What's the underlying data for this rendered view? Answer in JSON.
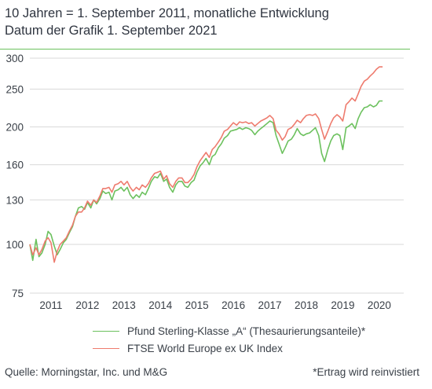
{
  "title": {
    "line1": "10 Jahren = 1. September 2011, monatliche Entwicklung",
    "line2": "Datum der Grafik 1. September 2021"
  },
  "footer": {
    "source": "Quelle: Morningstar, Inc. und M&G",
    "note": "*Ertrag wird reinvistiert"
  },
  "colors": {
    "fund": "#6cc15e",
    "index": "#ee7b6e",
    "grid": "#d9d9d9",
    "rule": "#6cc15e"
  },
  "chart_data": {
    "type": "line",
    "y_scale": "log",
    "ylim": [
      75,
      300
    ],
    "yticks": [
      75,
      100,
      130,
      160,
      200,
      250,
      300
    ],
    "xlim": [
      2010.75,
      2021.0
    ],
    "xticks": [
      "2011",
      "2012",
      "2013",
      "2014",
      "2015",
      "2016",
      "2017",
      "2018",
      "2019",
      "2020"
    ],
    "grid": true,
    "legend_position": "bottom",
    "series": [
      {
        "name": "Pfund Sterling-Klasse „A“ (Thesaurierungsanteile)*",
        "color": "#6cc15e",
        "points": [
          [
            2010.75,
            100
          ],
          [
            2010.83,
            91
          ],
          [
            2010.92,
            103
          ],
          [
            2011.0,
            93
          ],
          [
            2011.08,
            95
          ],
          [
            2011.17,
            100
          ],
          [
            2011.25,
            108
          ],
          [
            2011.33,
            106
          ],
          [
            2011.42,
            99
          ],
          [
            2011.5,
            94
          ],
          [
            2011.58,
            97
          ],
          [
            2011.67,
            101
          ],
          [
            2011.75,
            103
          ],
          [
            2011.83,
            107
          ],
          [
            2011.92,
            111
          ],
          [
            2012.0,
            118
          ],
          [
            2012.08,
            124
          ],
          [
            2012.17,
            125
          ],
          [
            2012.25,
            123
          ],
          [
            2012.33,
            128
          ],
          [
            2012.42,
            124
          ],
          [
            2012.5,
            130
          ],
          [
            2012.58,
            127
          ],
          [
            2012.67,
            131
          ],
          [
            2012.75,
            137
          ],
          [
            2012.83,
            135
          ],
          [
            2012.92,
            136
          ],
          [
            2013.0,
            130
          ],
          [
            2013.08,
            137
          ],
          [
            2013.17,
            138
          ],
          [
            2013.25,
            140
          ],
          [
            2013.33,
            137
          ],
          [
            2013.42,
            140
          ],
          [
            2013.5,
            134
          ],
          [
            2013.58,
            131
          ],
          [
            2013.67,
            134
          ],
          [
            2013.75,
            132
          ],
          [
            2013.83,
            136
          ],
          [
            2013.92,
            134
          ],
          [
            2014.0,
            139
          ],
          [
            2014.08,
            145
          ],
          [
            2014.17,
            149
          ],
          [
            2014.25,
            148
          ],
          [
            2014.33,
            152
          ],
          [
            2014.42,
            145
          ],
          [
            2014.5,
            147
          ],
          [
            2014.58,
            140
          ],
          [
            2014.67,
            136
          ],
          [
            2014.75,
            142
          ],
          [
            2014.83,
            145
          ],
          [
            2014.92,
            145
          ],
          [
            2015.0,
            141
          ],
          [
            2015.08,
            140
          ],
          [
            2015.17,
            144
          ],
          [
            2015.25,
            146
          ],
          [
            2015.33,
            153
          ],
          [
            2015.42,
            159
          ],
          [
            2015.5,
            162
          ],
          [
            2015.58,
            166
          ],
          [
            2015.67,
            160
          ],
          [
            2015.75,
            168
          ],
          [
            2015.83,
            170
          ],
          [
            2015.92,
            177
          ],
          [
            2016.0,
            181
          ],
          [
            2016.08,
            187
          ],
          [
            2016.17,
            190
          ],
          [
            2016.25,
            195
          ],
          [
            2016.33,
            196
          ],
          [
            2016.42,
            197
          ],
          [
            2016.5,
            199
          ],
          [
            2016.58,
            197
          ],
          [
            2016.67,
            199
          ],
          [
            2016.75,
            198
          ],
          [
            2016.83,
            196
          ],
          [
            2016.92,
            191
          ],
          [
            2017.0,
            195
          ],
          [
            2017.08,
            198
          ],
          [
            2017.17,
            201
          ],
          [
            2017.25,
            204
          ],
          [
            2017.33,
            207
          ],
          [
            2017.42,
            205
          ],
          [
            2017.5,
            190
          ],
          [
            2017.58,
            181
          ],
          [
            2017.67,
            171
          ],
          [
            2017.75,
            177
          ],
          [
            2017.83,
            184
          ],
          [
            2017.92,
            186
          ],
          [
            2018.0,
            191
          ],
          [
            2018.08,
            198
          ],
          [
            2018.17,
            192
          ],
          [
            2018.25,
            190
          ],
          [
            2018.33,
            192
          ],
          [
            2018.42,
            193
          ],
          [
            2018.5,
            196
          ],
          [
            2018.58,
            199
          ],
          [
            2018.67,
            190
          ],
          [
            2018.75,
            171
          ],
          [
            2018.83,
            163
          ],
          [
            2018.92,
            175
          ],
          [
            2019.0,
            184
          ],
          [
            2019.08,
            190
          ],
          [
            2019.17,
            192
          ],
          [
            2019.25,
            190
          ],
          [
            2019.33,
            175
          ],
          [
            2019.42,
            199
          ],
          [
            2019.5,
            201
          ],
          [
            2019.58,
            204
          ],
          [
            2019.67,
            198
          ],
          [
            2019.75,
            210
          ],
          [
            2019.83,
            218
          ],
          [
            2019.92,
            224
          ],
          [
            2020.0,
            225
          ],
          [
            2020.08,
            228
          ],
          [
            2020.17,
            225
          ],
          [
            2020.25,
            227
          ],
          [
            2020.33,
            233
          ],
          [
            2020.42,
            233
          ]
        ]
      },
      {
        "name": "FTSE World Europe ex UK Index",
        "color": "#ee7b6e",
        "points": [
          [
            2010.75,
            100
          ],
          [
            2010.83,
            94
          ],
          [
            2010.92,
            98
          ],
          [
            2011.0,
            94
          ],
          [
            2011.08,
            97
          ],
          [
            2011.17,
            102
          ],
          [
            2011.25,
            104
          ],
          [
            2011.33,
            101
          ],
          [
            2011.42,
            90
          ],
          [
            2011.5,
            96
          ],
          [
            2011.58,
            100
          ],
          [
            2011.67,
            102
          ],
          [
            2011.75,
            104
          ],
          [
            2011.83,
            108
          ],
          [
            2011.92,
            112
          ],
          [
            2012.0,
            118
          ],
          [
            2012.08,
            121
          ],
          [
            2012.17,
            121
          ],
          [
            2012.25,
            124
          ],
          [
            2012.33,
            129
          ],
          [
            2012.42,
            126
          ],
          [
            2012.5,
            130
          ],
          [
            2012.58,
            128
          ],
          [
            2012.67,
            133
          ],
          [
            2012.75,
            139
          ],
          [
            2012.83,
            139
          ],
          [
            2012.92,
            140
          ],
          [
            2013.0,
            136
          ],
          [
            2013.08,
            142
          ],
          [
            2013.17,
            143
          ],
          [
            2013.25,
            145
          ],
          [
            2013.33,
            142
          ],
          [
            2013.42,
            145
          ],
          [
            2013.5,
            140
          ],
          [
            2013.58,
            137
          ],
          [
            2013.67,
            140
          ],
          [
            2013.75,
            138
          ],
          [
            2013.83,
            142
          ],
          [
            2013.92,
            140
          ],
          [
            2014.0,
            143
          ],
          [
            2014.08,
            148
          ],
          [
            2014.17,
            152
          ],
          [
            2014.25,
            153
          ],
          [
            2014.33,
            154
          ],
          [
            2014.42,
            147
          ],
          [
            2014.5,
            150
          ],
          [
            2014.58,
            143
          ],
          [
            2014.67,
            140
          ],
          [
            2014.75,
            145
          ],
          [
            2014.83,
            148
          ],
          [
            2014.92,
            148
          ],
          [
            2015.0,
            144
          ],
          [
            2015.08,
            144
          ],
          [
            2015.17,
            147
          ],
          [
            2015.25,
            151
          ],
          [
            2015.33,
            158
          ],
          [
            2015.42,
            164
          ],
          [
            2015.5,
            168
          ],
          [
            2015.58,
            172
          ],
          [
            2015.67,
            167
          ],
          [
            2015.75,
            175
          ],
          [
            2015.83,
            178
          ],
          [
            2015.92,
            183
          ],
          [
            2016.0,
            188
          ],
          [
            2016.08,
            195
          ],
          [
            2016.17,
            197
          ],
          [
            2016.25,
            201
          ],
          [
            2016.33,
            205
          ],
          [
            2016.42,
            202
          ],
          [
            2016.5,
            206
          ],
          [
            2016.58,
            205
          ],
          [
            2016.67,
            206
          ],
          [
            2016.75,
            204
          ],
          [
            2016.83,
            205
          ],
          [
            2016.92,
            201
          ],
          [
            2017.0,
            204
          ],
          [
            2017.08,
            207
          ],
          [
            2017.17,
            209
          ],
          [
            2017.25,
            211
          ],
          [
            2017.33,
            214
          ],
          [
            2017.42,
            210
          ],
          [
            2017.5,
            196
          ],
          [
            2017.58,
            192
          ],
          [
            2017.67,
            185
          ],
          [
            2017.75,
            189
          ],
          [
            2017.83,
            197
          ],
          [
            2017.92,
            199
          ],
          [
            2018.0,
            203
          ],
          [
            2018.08,
            208
          ],
          [
            2018.17,
            205
          ],
          [
            2018.25,
            210
          ],
          [
            2018.33,
            214
          ],
          [
            2018.42,
            215
          ],
          [
            2018.5,
            214
          ],
          [
            2018.58,
            216
          ],
          [
            2018.67,
            210
          ],
          [
            2018.75,
            197
          ],
          [
            2018.83,
            186
          ],
          [
            2018.92,
            195
          ],
          [
            2019.0,
            204
          ],
          [
            2019.08,
            211
          ],
          [
            2019.17,
            215
          ],
          [
            2019.25,
            212
          ],
          [
            2019.33,
            207
          ],
          [
            2019.42,
            228
          ],
          [
            2019.5,
            232
          ],
          [
            2019.58,
            237
          ],
          [
            2019.67,
            233
          ],
          [
            2019.75,
            243
          ],
          [
            2019.83,
            254
          ],
          [
            2019.92,
            262
          ],
          [
            2020.0,
            265
          ],
          [
            2020.08,
            270
          ],
          [
            2020.17,
            275
          ],
          [
            2020.25,
            281
          ],
          [
            2020.33,
            285
          ],
          [
            2020.42,
            285
          ]
        ]
      }
    ]
  }
}
